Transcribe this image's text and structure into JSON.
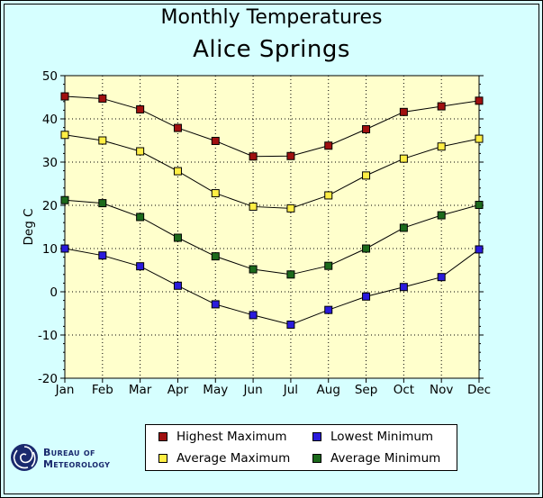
{
  "chart_data": {
    "type": "line",
    "title": "Monthly Temperatures",
    "subtitle": "Alice Springs",
    "xlabel": "",
    "ylabel": "Deg C",
    "categories": [
      "Jan",
      "Feb",
      "Mar",
      "Apr",
      "May",
      "Jun",
      "Jul",
      "Aug",
      "Sep",
      "Oct",
      "Nov",
      "Dec"
    ],
    "ylim": [
      -20,
      50
    ],
    "yticks": [
      -20,
      -10,
      0,
      10,
      20,
      30,
      40,
      50
    ],
    "grid": true,
    "legend_position": "bottom",
    "series": [
      {
        "name": "Highest Maximum",
        "color": "#a01010",
        "values": [
          45.2,
          44.7,
          42.2,
          37.9,
          34.9,
          31.3,
          31.4,
          33.8,
          37.6,
          41.6,
          42.9,
          44.2
        ]
      },
      {
        "name": "Average Maximum",
        "color": "#ffee44",
        "values": [
          36.3,
          35.0,
          32.5,
          27.9,
          22.8,
          19.7,
          19.3,
          22.3,
          26.9,
          30.8,
          33.6,
          35.4
        ]
      },
      {
        "name": "Average Minimum",
        "color": "#1c6a1c",
        "values": [
          21.2,
          20.5,
          17.3,
          12.5,
          8.2,
          5.2,
          4.0,
          6.0,
          10.0,
          14.8,
          17.7,
          20.1
        ]
      },
      {
        "name": "Lowest Minimum",
        "color": "#2a1adc",
        "values": [
          10.0,
          8.4,
          5.9,
          1.4,
          -2.9,
          -5.4,
          -7.6,
          -4.2,
          -1.1,
          1.1,
          3.4,
          9.8
        ]
      }
    ],
    "background": "#ffffcc",
    "frame_background": "#d6ffff"
  },
  "logo": {
    "line1": "Bureau of",
    "line2": "Meteorology",
    "icon": "bureau-of-meteorology-swirl-logo"
  }
}
